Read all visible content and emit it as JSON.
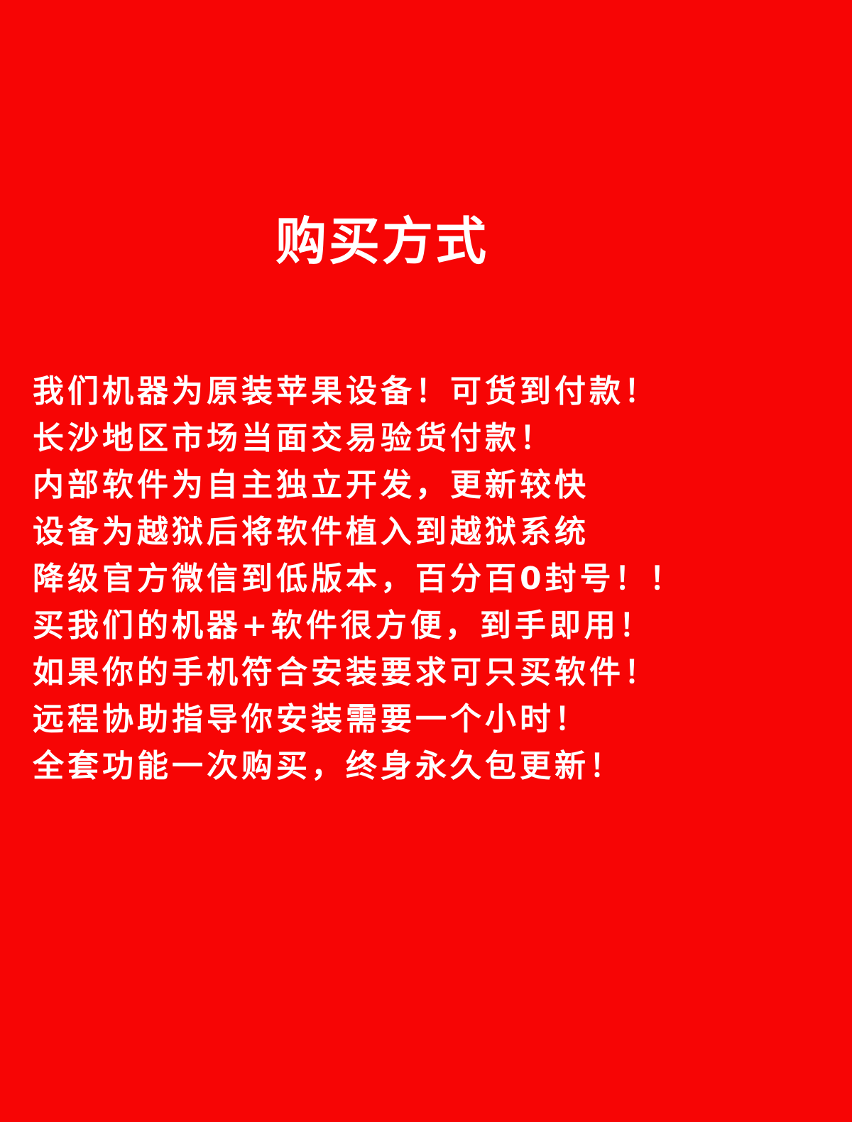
{
  "title": "购买方式",
  "lines": [
    "我们机器为原装苹果设备！可货到付款！",
    "长沙地区市场当面交易验货付款！",
    "内部软件为自主独立开发，更新较快",
    "设备为越狱后将软件植入到越狱系统",
    "降级官方微信到低版本，百分百0封号！！",
    "买我们的机器+软件很方便，到手即用！",
    "如果你的手机符合安装要求可只买软件！",
    "远程协助指导你安装需要一个小时！",
    "全套功能一次购买，终身永久包更新！"
  ],
  "colors": {
    "background": "#f70505",
    "text": "#ffffff"
  }
}
